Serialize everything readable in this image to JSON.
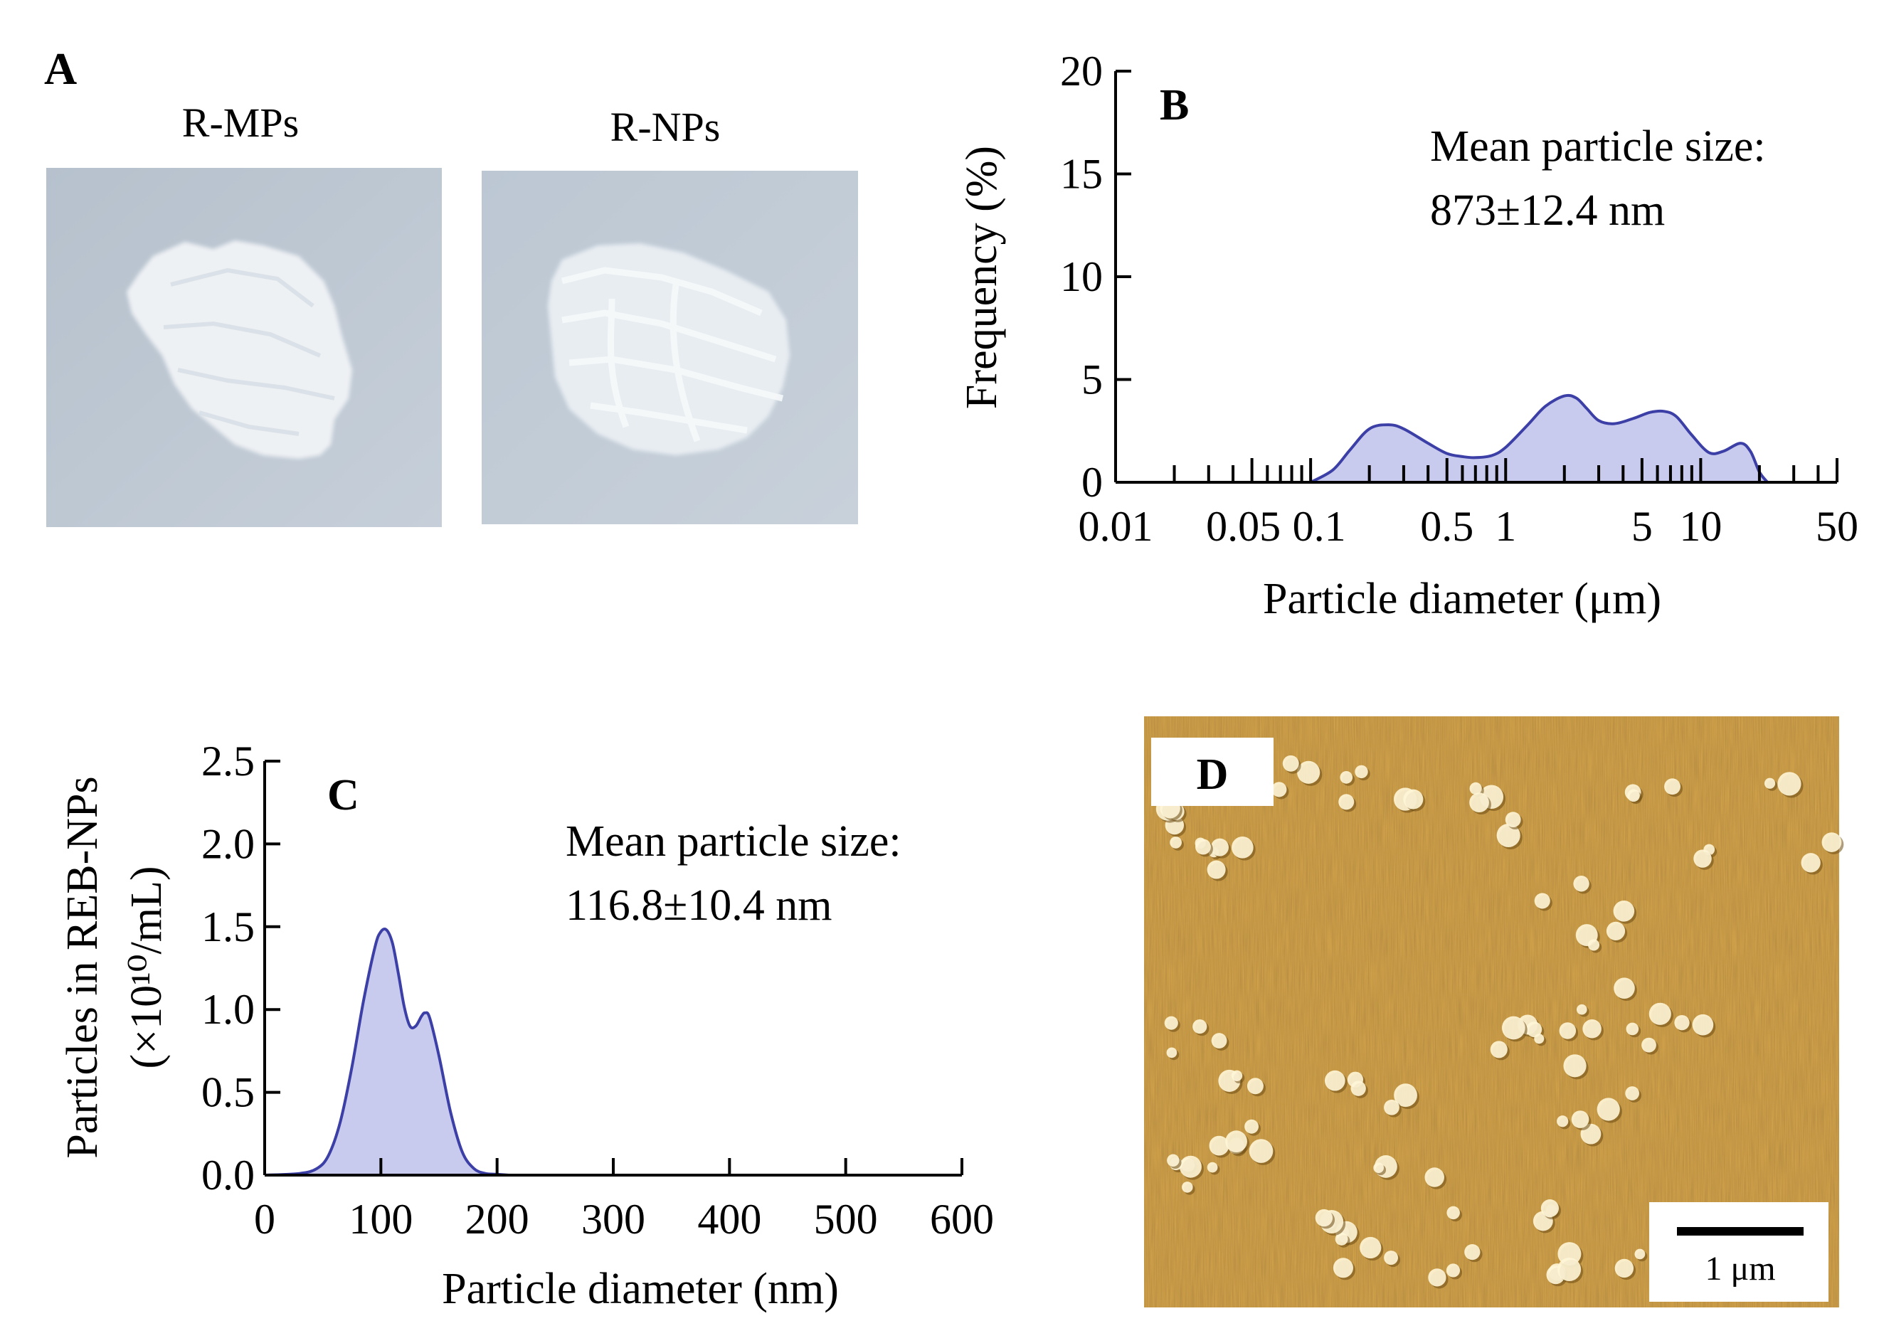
{
  "panels": {
    "a": {
      "letter": "A",
      "left_label": "R-MPs",
      "right_label": "R-NPs"
    },
    "d": {
      "letter": "D",
      "scale_label": "1 μm"
    }
  },
  "colors": {
    "fill": "#c9cbee",
    "stroke": "#3c3fa6",
    "afm_bg": "#d9a84e",
    "photo_bg": "#bcc6d2"
  },
  "chart_data": [
    {
      "panel": "B",
      "type": "area",
      "xscale": "log",
      "title": "",
      "xlabel": "Particle diameter (μm)",
      "ylabel": "Frequency (%)",
      "xlim": [
        0.01,
        50
      ],
      "ylim": [
        0,
        20
      ],
      "xticklabels": [
        "0.01",
        "0.05",
        "0.1",
        "0.5",
        "1",
        "5",
        "10",
        "50"
      ],
      "xtick_values": [
        0.01,
        0.05,
        0.1,
        0.5,
        1,
        5,
        10,
        50
      ],
      "yticklabels": [
        "0",
        "5",
        "10",
        "15",
        "20"
      ],
      "ytick_values": [
        0,
        5,
        10,
        15,
        20
      ],
      "annotation": [
        "Mean particle size:",
        "873±12.4 nm"
      ],
      "x": [
        0.1,
        0.13,
        0.16,
        0.2,
        0.25,
        0.3,
        0.4,
        0.5,
        0.6,
        0.7,
        0.85,
        1.0,
        1.3,
        1.6,
        2.0,
        2.3,
        2.6,
        3.0,
        3.6,
        4.5,
        5.5,
        6.5,
        7.5,
        9.0,
        11.0,
        13.0,
        16.0,
        18.0,
        20.0,
        22.0
      ],
      "values": [
        0,
        0.6,
        1.6,
        2.6,
        2.8,
        2.6,
        1.9,
        1.4,
        1.25,
        1.2,
        1.3,
        1.7,
        2.8,
        3.7,
        4.2,
        4.1,
        3.6,
        3.0,
        2.85,
        3.1,
        3.4,
        3.45,
        3.2,
        2.3,
        1.45,
        1.5,
        1.9,
        1.5,
        0.5,
        0
      ]
    },
    {
      "panel": "C",
      "type": "area",
      "title": "",
      "xlabel": "Particle diameter (nm)",
      "ylabel": "Particles in REB-NPs",
      "ylabel2": "(×10¹⁰/mL)",
      "xlim": [
        0,
        600
      ],
      "ylim": [
        0,
        2.5
      ],
      "xticklabels": [
        "0",
        "100",
        "200",
        "300",
        "400",
        "500",
        "600"
      ],
      "xtick_values": [
        0,
        100,
        200,
        300,
        400,
        500,
        600
      ],
      "yticklabels": [
        "0.0",
        "0.5",
        "1.0",
        "1.5",
        "2.0",
        "2.5"
      ],
      "ytick_values": [
        0,
        0.5,
        1.0,
        1.5,
        2.0,
        2.5
      ],
      "annotation": [
        "Mean particle size:",
        "116.8±10.4 nm"
      ],
      "x": [
        0,
        30,
        45,
        55,
        65,
        75,
        85,
        95,
        100,
        105,
        110,
        115,
        120,
        125,
        130,
        135,
        138,
        142,
        150,
        160,
        170,
        180,
        190,
        200,
        210
      ],
      "values": [
        0,
        0.01,
        0.04,
        0.12,
        0.32,
        0.65,
        1.05,
        1.38,
        1.47,
        1.48,
        1.4,
        1.22,
        1.02,
        0.9,
        0.9,
        0.96,
        0.98,
        0.95,
        0.72,
        0.38,
        0.14,
        0.04,
        0.01,
        0.005,
        0
      ]
    }
  ]
}
